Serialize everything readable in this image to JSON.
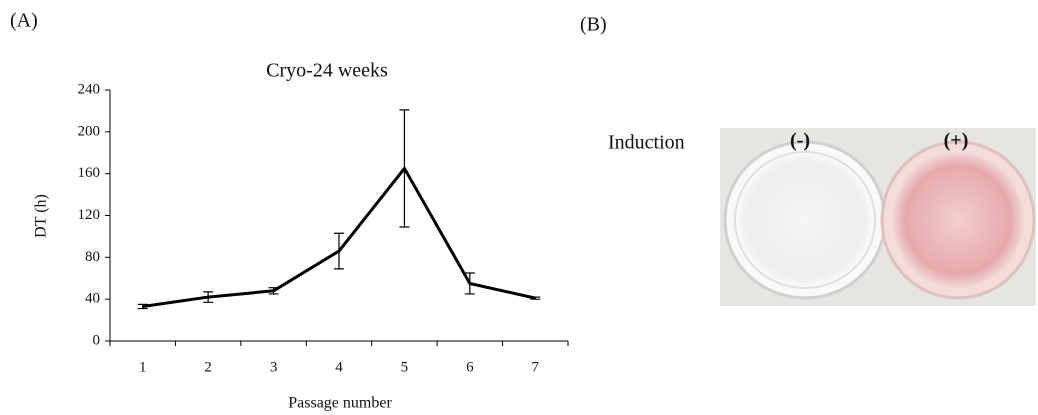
{
  "panel_labels": [
    "(A)",
    "(B)"
  ],
  "chart_data": {
    "type": "line",
    "title": "Cryo-24 weeks",
    "x_label": "Passage number",
    "y_label": "DT (h)",
    "categories": [
      "1",
      "2",
      "3",
      "4",
      "5",
      "6",
      "7"
    ],
    "values": [
      33,
      42,
      48,
      86,
      165,
      55,
      41
    ],
    "errors": [
      2,
      5,
      3,
      17,
      56,
      10,
      1
    ],
    "color": "#000000",
    "ylim": [
      0,
      240
    ],
    "yticks": [
      0,
      40,
      80,
      120,
      160,
      200,
      240
    ],
    "grid": false
  },
  "photo": {
    "row_label": "Induction",
    "columns": [
      "(-)",
      "(+)"
    ]
  }
}
